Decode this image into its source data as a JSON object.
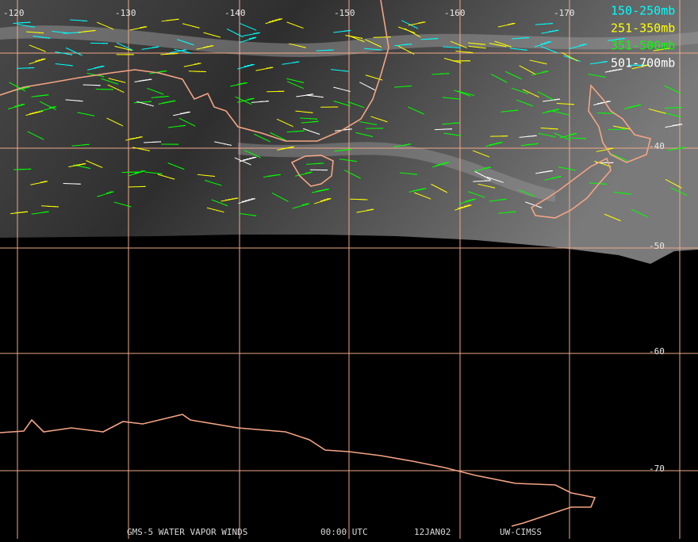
{
  "longitude_labels": [
    "-120",
    "-130",
    "-140",
    "-150",
    "-160",
    "-170"
  ],
  "latitude_labels": [
    "-40",
    "-50",
    "-60",
    "-70"
  ],
  "legend": [
    {
      "label": "150-250mb",
      "color": "#00ffff"
    },
    {
      "label": "251-350mb",
      "color": "#ffff00"
    },
    {
      "label": "351-500mb",
      "color": "#00ff00"
    },
    {
      "label": "501-700mb",
      "color": "#ffffff"
    }
  ],
  "footer": [
    "GMS-5 WATER VAPOR WINDS",
    "00:00 UTC",
    "12JAN02",
    "UW-CIMSS"
  ]
}
